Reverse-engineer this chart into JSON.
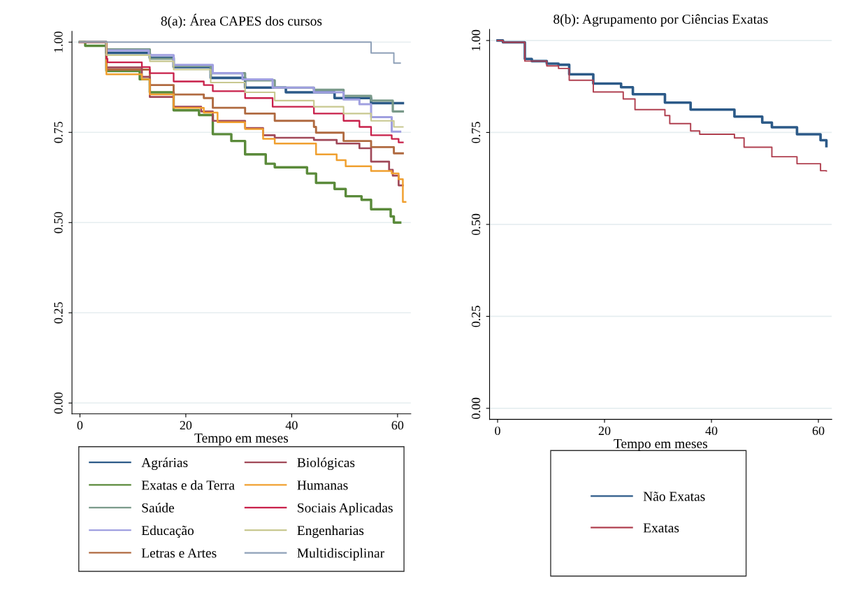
{
  "chart_data": [
    {
      "type": "step",
      "title": "8(a): Área CAPES dos cursos",
      "xlabel": "Tempo em meses",
      "xlim": [
        -1.5,
        62.5
      ],
      "xticks": [
        0,
        20,
        40,
        60
      ],
      "ylim": [
        -0.03,
        1.03
      ],
      "yticks": [
        {
          "value": 0,
          "label": "0.00"
        },
        {
          "value": 0.25,
          "label": "0.25"
        },
        {
          "value": 0.5,
          "label": "0.50"
        },
        {
          "value": 0.75,
          "label": "0.75"
        },
        {
          "value": 1,
          "label": "1.00"
        }
      ],
      "grid": "y",
      "legend": "bottom",
      "line_style": "solid",
      "marker": "none",
      "series": [
        {
          "name": "Agrárias",
          "color": "#2c5a88",
          "x": [
            0,
            5,
            13.2,
            17.7,
            24.7,
            31.2,
            38.9,
            48.1,
            55,
            61
          ],
          "values": [
            1,
            0.97,
            0.957,
            0.931,
            0.901,
            0.874,
            0.861,
            0.845,
            0.831,
            0.831
          ]
        },
        {
          "name": "Exatas e da Terra",
          "color": "#5a8a3a",
          "x": [
            0,
            1,
            5,
            11.3,
            13.2,
            17.7,
            22.5,
            25.1,
            28.6,
            31.2,
            35.1,
            36.8,
            42.9,
            44.6,
            48.1,
            50.2,
            53.2,
            55,
            58.7,
            59.3,
            60.5
          ],
          "values": [
            1,
            0.99,
            0.92,
            0.897,
            0.861,
            0.811,
            0.798,
            0.745,
            0.726,
            0.689,
            0.663,
            0.653,
            0.636,
            0.61,
            0.593,
            0.573,
            0.563,
            0.537,
            0.517,
            0.5,
            0.5
          ]
        },
        {
          "name": "Saúde",
          "color": "#7a9a8a",
          "x": [
            0,
            5,
            13.2,
            17.7,
            24.7,
            31.2,
            36.8,
            44.2,
            49.8,
            55,
            59.1,
            61
          ],
          "values": [
            1,
            0.98,
            0.954,
            0.934,
            0.914,
            0.894,
            0.874,
            0.868,
            0.851,
            0.838,
            0.808,
            0.808
          ]
        },
        {
          "name": "Educação",
          "color": "#a0a0e0",
          "x": [
            0,
            5,
            13,
            17.7,
            25.1,
            30.7,
            36.4,
            44.2,
            49.8,
            52.8,
            55,
            58.9,
            60.5
          ],
          "values": [
            1,
            0.977,
            0.964,
            0.937,
            0.914,
            0.897,
            0.874,
            0.861,
            0.841,
            0.828,
            0.792,
            0.752,
            0.752
          ]
        },
        {
          "name": "Letras e Artes",
          "color": "#b06a40",
          "x": [
            0,
            5,
            13.2,
            17.7,
            23.4,
            25.1,
            31.2,
            36.8,
            44.2,
            44.6,
            49.8,
            55,
            59.3,
            61
          ],
          "values": [
            1,
            0.924,
            0.881,
            0.855,
            0.845,
            0.818,
            0.802,
            0.782,
            0.765,
            0.749,
            0.726,
            0.709,
            0.692,
            0.692
          ]
        },
        {
          "name": "Biológicas",
          "color": "#a04858",
          "x": [
            0,
            5,
            11.7,
            13.2,
            17.7,
            22.9,
            25.1,
            31.2,
            34.6,
            36.8,
            44.2,
            48.5,
            52.8,
            55,
            58.4,
            59.1,
            60.2,
            61
          ],
          "values": [
            1,
            0.93,
            0.904,
            0.848,
            0.821,
            0.808,
            0.782,
            0.762,
            0.742,
            0.735,
            0.729,
            0.719,
            0.706,
            0.669,
            0.646,
            0.63,
            0.603,
            0.603
          ]
        },
        {
          "name": "Humanas",
          "color": "#f0a030",
          "x": [
            0,
            5,
            11.7,
            13.2,
            17.7,
            23.4,
            26,
            31.2,
            34.6,
            36.8,
            44.6,
            48.5,
            50.2,
            55,
            58.9,
            60.2,
            61,
            61.5
          ],
          "values": [
            1,
            0.911,
            0.897,
            0.855,
            0.818,
            0.805,
            0.778,
            0.759,
            0.732,
            0.719,
            0.689,
            0.673,
            0.656,
            0.643,
            0.636,
            0.62,
            0.557,
            0.557
          ]
        },
        {
          "name": "Sociais Aplicadas",
          "color": "#c8204a",
          "x": [
            0,
            5,
            5.2,
            11.7,
            13.2,
            17.7,
            23.4,
            25.1,
            31.2,
            36.4,
            44.2,
            49.8,
            52.8,
            55,
            58.9,
            60.2,
            61
          ],
          "values": [
            1,
            0.954,
            0.944,
            0.931,
            0.914,
            0.891,
            0.881,
            0.864,
            0.845,
            0.821,
            0.802,
            0.782,
            0.765,
            0.742,
            0.732,
            0.722,
            0.722
          ]
        },
        {
          "name": "Engenharias",
          "color": "#c8c890",
          "x": [
            0,
            5,
            13.2,
            17.7,
            24.7,
            31.2,
            36.8,
            44.2,
            49.8,
            55,
            59.3,
            61
          ],
          "values": [
            1,
            0.964,
            0.947,
            0.924,
            0.888,
            0.861,
            0.838,
            0.821,
            0.802,
            0.782,
            0.765,
            0.765
          ]
        },
        {
          "name": "Multidisciplinar",
          "color": "#8ea0b8",
          "x": [
            0,
            55,
            59.3,
            60.5
          ],
          "values": [
            1,
            0.97,
            0.942,
            0.942
          ]
        }
      ]
    },
    {
      "type": "step",
      "title": "8(b): Agrupamento por Ciências Exatas",
      "xlabel": "Tempo em meses",
      "xlim": [
        -1.5,
        62.5
      ],
      "xticks": [
        0,
        20,
        40,
        60
      ],
      "ylim": [
        -0.03,
        1.03
      ],
      "yticks": [
        {
          "value": 0,
          "label": "0.00"
        },
        {
          "value": 0.25,
          "label": "0.25"
        },
        {
          "value": 0.5,
          "label": "0.50"
        },
        {
          "value": 0.75,
          "label": "0.75"
        },
        {
          "value": 1,
          "label": "1.00"
        }
      ],
      "grid": "y",
      "legend": "bottom",
      "line_style": "solid",
      "marker": "none",
      "series": [
        {
          "name": "Não Exatas",
          "color": "#2c5a88",
          "x": [
            0,
            1,
            5.1,
            6.4,
            9.2,
            11.4,
            13.4,
            17.9,
            23.1,
            25.3,
            31.3,
            36.1,
            44.3,
            49.5,
            51.3,
            56,
            60.4,
            61.5
          ],
          "values": [
            1,
            0.995,
            0.95,
            0.944,
            0.937,
            0.934,
            0.908,
            0.883,
            0.873,
            0.854,
            0.831,
            0.812,
            0.793,
            0.777,
            0.764,
            0.745,
            0.729,
            0.713
          ]
        },
        {
          "name": "Exatas",
          "color": "#b04050",
          "x": [
            0,
            1,
            5.1,
            9.2,
            11.4,
            13.4,
            17.9,
            23.5,
            25.7,
            31.3,
            32.2,
            36.1,
            37.8,
            44.3,
            46.1,
            51.3,
            56,
            60.4,
            61.5
          ],
          "values": [
            1,
            0.995,
            0.944,
            0.931,
            0.924,
            0.892,
            0.86,
            0.841,
            0.812,
            0.796,
            0.774,
            0.754,
            0.745,
            0.735,
            0.71,
            0.684,
            0.665,
            0.646,
            0.645
          ]
        }
      ]
    }
  ]
}
